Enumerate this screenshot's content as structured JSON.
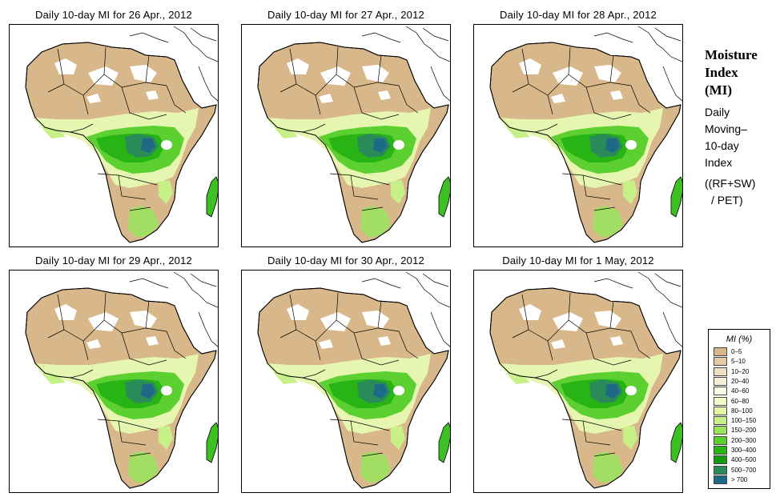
{
  "panels": [
    {
      "title": "Daily 10-day MI for  26 Apr., 2012"
    },
    {
      "title": "Daily 10-day MI for  27 Apr., 2012"
    },
    {
      "title": "Daily 10-day MI for  28 Apr., 2012"
    },
    {
      "title": "Daily 10-day MI for  29 Apr., 2012"
    },
    {
      "title": "Daily 10-day MI for  30 Apr., 2012"
    },
    {
      "title": "Daily 10-day MI for  1 May, 2012"
    }
  ],
  "side": {
    "title_line1": "Moisture",
    "title_line2": "Index",
    "title_line3": "(MI)",
    "sub_line1": "Daily",
    "sub_line2": "Moving–",
    "sub_line3": "10-day",
    "sub_line4": "Index",
    "formula_line1": "((RF+SW)",
    "formula_line2": "/ PET)"
  },
  "legend": {
    "title": "MI (%)",
    "items": [
      {
        "label": "0–5",
        "color": "#d8b88a"
      },
      {
        "label": "5–10",
        "color": "#e4cba4"
      },
      {
        "label": "10–20",
        "color": "#efe0c4"
      },
      {
        "label": "20–40",
        "color": "#f6efd8"
      },
      {
        "label": "40–60",
        "color": "#fcfbe6"
      },
      {
        "label": "60–80",
        "color": "#f2fcc8"
      },
      {
        "label": "80–100",
        "color": "#e2f8a8"
      },
      {
        "label": "100–150",
        "color": "#c8f088"
      },
      {
        "label": "150–200",
        "color": "#98e45c"
      },
      {
        "label": "200–300",
        "color": "#5cd030"
      },
      {
        "label": "300–400",
        "color": "#28b414"
      },
      {
        "label": "400–500",
        "color": "#169a14"
      },
      {
        "label": "500–700",
        "color": "#2a8a5a"
      },
      {
        "label": "> 700",
        "color": "#1e6a86"
      }
    ]
  }
}
